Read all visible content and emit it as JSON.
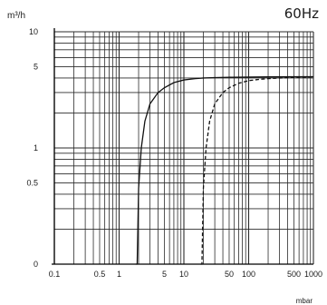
{
  "chart_data": {
    "type": "line",
    "title": "60Hz",
    "xlabel": "mbar",
    "ylabel": "m³/h",
    "x_scale": "log",
    "y_scale": "log",
    "xlim": [
      0.1,
      1000
    ],
    "ylim": [
      0,
      10
    ],
    "grid": true,
    "x_tick_labels": [
      "0.1",
      "0.5",
      "1",
      "5",
      "10",
      "50",
      "100",
      "500",
      "1000"
    ],
    "y_tick_labels": [
      "0",
      "0.5",
      "1",
      "5",
      "10"
    ],
    "series": [
      {
        "style": "solid",
        "x": [
          1.8,
          1.9,
          2.0,
          2.2,
          2.5,
          3,
          4,
          5,
          7,
          10,
          15,
          20,
          30,
          50,
          100,
          200,
          500,
          1000
        ],
        "y": [
          0,
          0.1,
          0.45,
          1.0,
          1.7,
          2.4,
          3.0,
          3.3,
          3.65,
          3.85,
          3.95,
          4.0,
          4.03,
          4.06,
          4.08,
          4.09,
          4.1,
          4.1
        ]
      },
      {
        "style": "dashed",
        "x": [
          18,
          19,
          20,
          22,
          25,
          30,
          40,
          50,
          70,
          100,
          150,
          200,
          300,
          500,
          1000
        ],
        "y": [
          0,
          0.1,
          0.45,
          1.0,
          1.7,
          2.4,
          3.0,
          3.3,
          3.6,
          3.8,
          3.9,
          3.95,
          4.0,
          4.05,
          4.1
        ]
      }
    ]
  },
  "colors": {
    "grid": "#2b2b2b",
    "curve": "#111111"
  }
}
